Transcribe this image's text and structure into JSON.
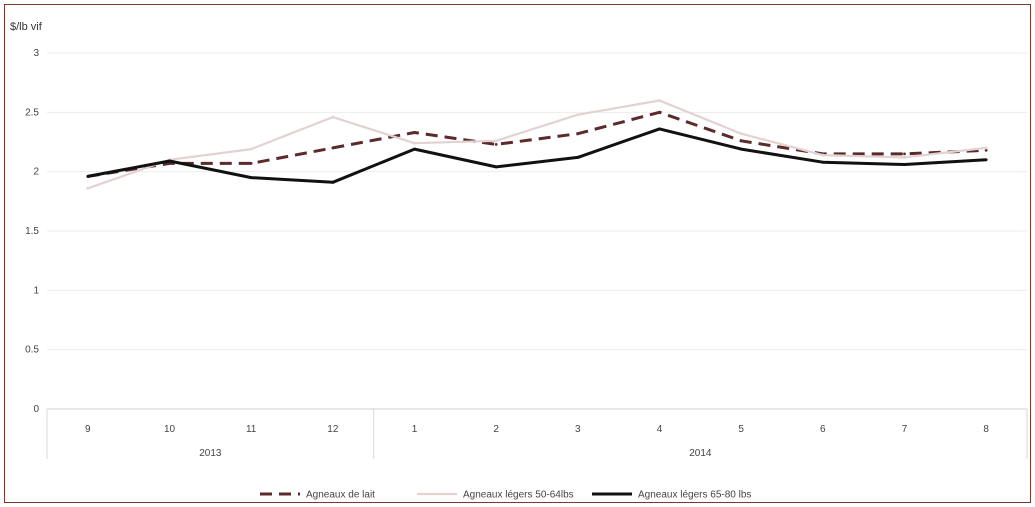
{
  "chart_data": {
    "type": "line",
    "ylabel": "$/lb vif",
    "ylim": [
      0,
      3
    ],
    "yticks": [
      0,
      0.5,
      1,
      1.5,
      2,
      2.5,
      3
    ],
    "grid": true,
    "categories": [
      "9",
      "10",
      "11",
      "12",
      "1",
      "2",
      "3",
      "4",
      "5",
      "6",
      "7",
      "8"
    ],
    "groups": [
      {
        "label": "2013",
        "count": 4
      },
      {
        "label": "2014",
        "count": 8
      }
    ],
    "legend_position": "bottom",
    "series": [
      {
        "name": "Agneaux de lait",
        "color": "#5c2a2a",
        "style": "dashed",
        "values": [
          1.96,
          2.07,
          2.07,
          2.2,
          2.33,
          2.23,
          2.32,
          2.5,
          2.26,
          2.15,
          2.15,
          2.18
        ]
      },
      {
        "name": "Agneaux légers 50-64lbs",
        "color": "#e2d2d2",
        "style": "solid",
        "values": [
          1.86,
          2.1,
          2.19,
          2.46,
          2.24,
          2.26,
          2.48,
          2.6,
          2.32,
          2.14,
          2.12,
          2.2
        ]
      },
      {
        "name": "Agneaux légers 65-80 lbs",
        "color": "#111111",
        "style": "solid",
        "values": [
          1.96,
          2.09,
          1.95,
          1.91,
          2.19,
          2.04,
          2.12,
          2.36,
          2.19,
          2.08,
          2.06,
          2.1
        ]
      }
    ]
  }
}
